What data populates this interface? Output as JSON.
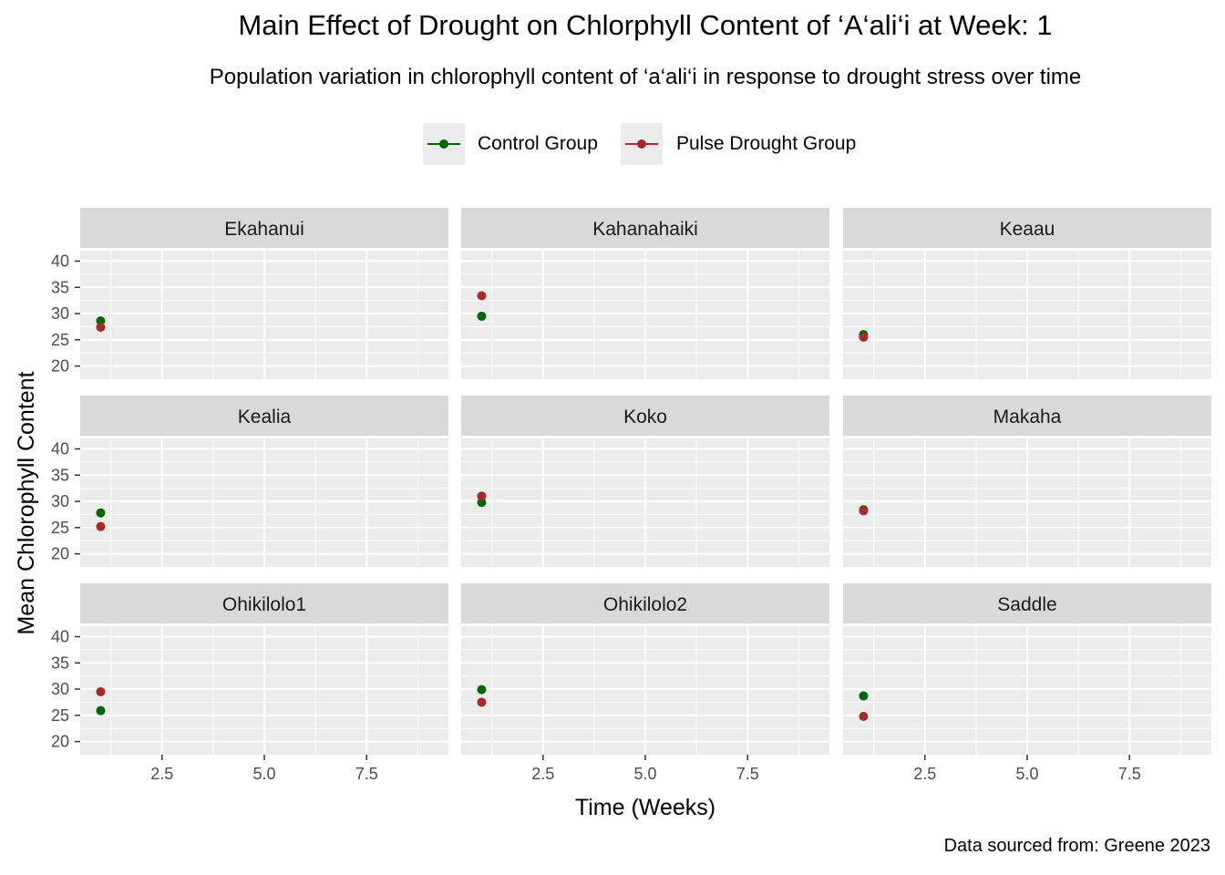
{
  "title": "Main Effect of Drought on Chlorphyll Content of ‘A‘ali‘i at Week: 1",
  "subtitle": "Population variation in chlorophyll content of ‘a‘ali‘i in response to drought stress over time",
  "caption": "Data sourced from: Greene 2023",
  "legend": {
    "items": [
      {
        "label": "Control Group",
        "color": "#006400"
      },
      {
        "label": "Pulse Drought Group",
        "color": "#A52A2A"
      }
    ]
  },
  "chart_data": {
    "type": "scatter",
    "xlabel": "Time (Weeks)",
    "ylabel": "Mean Chlorophyll Content",
    "xlim": [
      0.5,
      9.5
    ],
    "ylim": [
      17.5,
      42
    ],
    "xticks": [
      2.5,
      5.0,
      7.5
    ],
    "xtick_labels": [
      "2.5",
      "5.0",
      "7.5"
    ],
    "yticks": [
      20,
      25,
      30,
      35,
      40
    ],
    "ytick_labels": [
      "20",
      "25",
      "30",
      "35",
      "40"
    ],
    "grid": true,
    "legend_position": "top",
    "series_colors": {
      "Control Group": "#006400",
      "Pulse Drought Group": "#A52A2A"
    },
    "panels": [
      {
        "name": "Ekahanui",
        "points": [
          {
            "series": "Control Group",
            "x": 1,
            "y": 28.6
          },
          {
            "series": "Pulse Drought Group",
            "x": 1,
            "y": 27.4
          }
        ]
      },
      {
        "name": "Kahanahaiki",
        "points": [
          {
            "series": "Control Group",
            "x": 1,
            "y": 29.5
          },
          {
            "series": "Pulse Drought Group",
            "x": 1,
            "y": 33.4
          }
        ]
      },
      {
        "name": "Keaau",
        "points": [
          {
            "series": "Control Group",
            "x": 1,
            "y": 26.0
          },
          {
            "series": "Pulse Drought Group",
            "x": 1,
            "y": 25.5
          }
        ]
      },
      {
        "name": "Kealia",
        "points": [
          {
            "series": "Control Group",
            "x": 1,
            "y": 27.8
          },
          {
            "series": "Pulse Drought Group",
            "x": 1,
            "y": 25.2
          }
        ]
      },
      {
        "name": "Koko",
        "points": [
          {
            "series": "Control Group",
            "x": 1,
            "y": 29.8
          },
          {
            "series": "Pulse Drought Group",
            "x": 1,
            "y": 31.0
          }
        ]
      },
      {
        "name": "Makaha",
        "points": [
          {
            "series": "Control Group",
            "x": 1,
            "y": 28.4
          },
          {
            "series": "Pulse Drought Group",
            "x": 1,
            "y": 28.2
          }
        ]
      },
      {
        "name": "Ohikilolo1",
        "points": [
          {
            "series": "Control Group",
            "x": 1,
            "y": 25.9
          },
          {
            "series": "Pulse Drought Group",
            "x": 1,
            "y": 29.5
          }
        ]
      },
      {
        "name": "Ohikilolo2",
        "points": [
          {
            "series": "Control Group",
            "x": 1,
            "y": 29.9
          },
          {
            "series": "Pulse Drought Group",
            "x": 1,
            "y": 27.5
          }
        ]
      },
      {
        "name": "Saddle",
        "points": [
          {
            "series": "Control Group",
            "x": 1,
            "y": 28.7
          },
          {
            "series": "Pulse Drought Group",
            "x": 1,
            "y": 24.8
          }
        ]
      }
    ]
  }
}
